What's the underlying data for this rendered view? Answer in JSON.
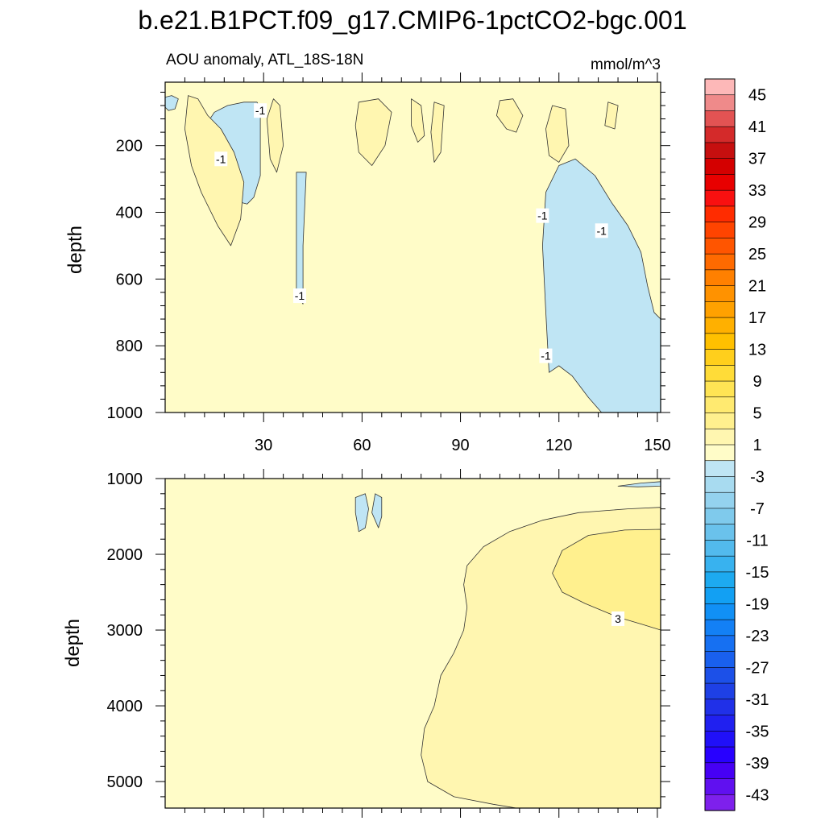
{
  "title": "b.e21.B1PCT.f09_g17.CMIP6-1pctCO2-bgc.001",
  "chart_data": [
    {
      "type": "contour",
      "panel": "upper",
      "left_string": "AOU anomaly, ATL_18S-18N",
      "right_string": "mmol/m^3",
      "ylabel": "depth",
      "xlabel": "",
      "xlim": [
        0,
        151
      ],
      "ylim": [
        1000,
        10
      ],
      "x_ticks": [
        30,
        60,
        90,
        120,
        150
      ],
      "x_tick_labels": [
        "30",
        "60",
        "90",
        "120",
        "150"
      ],
      "y_ticks": [
        200,
        400,
        600,
        800,
        1000
      ],
      "y_tick_labels": [
        "200",
        "400",
        "600",
        "800",
        "1000"
      ],
      "background_level": "-1 to 1",
      "contour_labels": [
        {
          "text": "-1",
          "x": 29,
          "y": 95
        },
        {
          "text": "-1",
          "x": 17,
          "y": 240
        },
        {
          "text": "-1",
          "x": 41,
          "y": 650
        },
        {
          "text": "-1",
          "x": 115,
          "y": 410
        },
        {
          "text": "-1",
          "x": 133,
          "y": 455
        },
        {
          "text": "-1",
          "x": 116,
          "y": 830
        }
      ],
      "regions": [
        {
          "level": "-3 to -1",
          "desc": "negative anomaly west",
          "points": [
            [
              15,
              100
            ],
            [
              19,
              80
            ],
            [
              24,
              70
            ],
            [
              28,
              70
            ],
            [
              29,
              90
            ],
            [
              29,
              290
            ],
            [
              27,
              355
            ],
            [
              25,
              375
            ],
            [
              21,
              365
            ],
            [
              17,
              320
            ],
            [
              16,
              250
            ],
            [
              14,
              180
            ],
            [
              13,
              130
            ]
          ]
        },
        {
          "level": "-3 to -1",
          "desc": "narrow negative tongue",
          "points": [
            [
              40,
              280
            ],
            [
              43,
              280
            ],
            [
              42,
              500
            ],
            [
              42,
              675
            ],
            [
              40,
              640
            ],
            [
              40,
              450
            ]
          ]
        },
        {
          "level": "-3 to -1",
          "desc": "negative anomaly east",
          "points": [
            [
              116,
              340
            ],
            [
              120,
              260
            ],
            [
              125,
              240
            ],
            [
              131,
              290
            ],
            [
              136,
              370
            ],
            [
              141,
              440
            ],
            [
              145,
              520
            ],
            [
              147,
              620
            ],
            [
              149,
              700
            ],
            [
              151,
              720
            ],
            [
              151,
              1000
            ],
            [
              133,
              1000
            ],
            [
              129,
              955
            ],
            [
              124,
              890
            ],
            [
              120,
              860
            ],
            [
              117,
              880
            ],
            [
              116,
              700
            ],
            [
              115,
              500
            ]
          ]
        },
        {
          "level": "-3 to -1",
          "desc": "small negative patch",
          "points": [
            [
              0,
              55
            ],
            [
              2,
              50
            ],
            [
              4,
              60
            ],
            [
              3,
              90
            ],
            [
              1,
              95
            ],
            [
              0,
              85
            ]
          ]
        },
        {
          "level": "1 to 3",
          "desc": "positive lobe",
          "points": [
            [
              7,
              50
            ],
            [
              10,
              60
            ],
            [
              13,
              110
            ],
            [
              17,
              150
            ],
            [
              21,
              220
            ],
            [
              24,
              310
            ],
            [
              23,
              420
            ],
            [
              20,
              500
            ],
            [
              16,
              440
            ],
            [
              11,
              340
            ],
            [
              8,
              260
            ],
            [
              6,
              150
            ]
          ]
        },
        {
          "level": "1 to 3",
          "desc": "positive lobe",
          "points": [
            [
              33,
              60
            ],
            [
              35,
              80
            ],
            [
              36,
              200
            ],
            [
              34,
              280
            ],
            [
              32,
              240
            ],
            [
              31,
              120
            ]
          ]
        },
        {
          "level": "1 to 3",
          "desc": "positive lobe",
          "points": [
            [
              59,
              70
            ],
            [
              65,
              60
            ],
            [
              69,
              100
            ],
            [
              67,
              200
            ],
            [
              63,
              260
            ],
            [
              59,
              220
            ],
            [
              58,
              140
            ]
          ]
        },
        {
          "level": "1 to 3",
          "desc": "positive lobe",
          "points": [
            [
              75,
              60
            ],
            [
              78,
              80
            ],
            [
              79,
              170
            ],
            [
              77,
              190
            ],
            [
              75,
              140
            ]
          ]
        },
        {
          "level": "1 to 3",
          "desc": "positive lobe",
          "points": [
            [
              82,
              70
            ],
            [
              85,
              80
            ],
            [
              84,
              220
            ],
            [
              82,
              250
            ],
            [
              81,
              160
            ]
          ]
        },
        {
          "level": "1 to 3",
          "desc": "positive lobe",
          "points": [
            [
              102,
              65
            ],
            [
              106,
              60
            ],
            [
              109,
              110
            ],
            [
              107,
              160
            ],
            [
              104,
              150
            ],
            [
              101,
              110
            ]
          ]
        },
        {
          "level": "1 to 3",
          "desc": "positive lobe",
          "points": [
            [
              118,
              80
            ],
            [
              122,
              90
            ],
            [
              123,
              200
            ],
            [
              120,
              250
            ],
            [
              117,
              230
            ],
            [
              116,
              150
            ]
          ]
        },
        {
          "level": "1 to 3",
          "desc": "positive lobe",
          "points": [
            [
              135,
              70
            ],
            [
              138,
              80
            ],
            [
              137,
              150
            ],
            [
              134,
              140
            ]
          ]
        }
      ]
    },
    {
      "type": "contour",
      "panel": "lower",
      "ylabel": "depth",
      "xlim": [
        0,
        151
      ],
      "ylim": [
        5350,
        1000
      ],
      "y_ticks": [
        1000,
        2000,
        3000,
        4000,
        5000
      ],
      "y_tick_labels": [
        "1000",
        "2000",
        "3000",
        "4000",
        "5000"
      ],
      "x_ticks": [
        30,
        60,
        90,
        120,
        150
      ],
      "background_level": "-1 to 1",
      "contour_labels": [
        {
          "text": "3",
          "x": 138,
          "y": 2850
        }
      ],
      "regions": [
        {
          "level": "1 to 3",
          "desc": "deep positive anomaly",
          "points": [
            [
              151,
              1380
            ],
            [
              141,
              1400
            ],
            [
              126,
              1450
            ],
            [
              115,
              1550
            ],
            [
              105,
              1700
            ],
            [
              97,
              1900
            ],
            [
              92,
              2150
            ],
            [
              91,
              2400
            ],
            [
              92,
              2700
            ],
            [
              91,
              3000
            ],
            [
              88,
              3300
            ],
            [
              84,
              3600
            ],
            [
              82,
              4000
            ],
            [
              79,
              4300
            ],
            [
              78,
              4650
            ],
            [
              80,
              5000
            ],
            [
              88,
              5200
            ],
            [
              100,
              5300
            ],
            [
              107,
              5350
            ],
            [
              151,
              5350
            ]
          ]
        },
        {
          "level": "3 to 5",
          "desc": "positive core",
          "points": [
            [
              151,
              1670
            ],
            [
              140,
              1680
            ],
            [
              129,
              1750
            ],
            [
              121,
              1950
            ],
            [
              118,
              2250
            ],
            [
              121,
              2500
            ],
            [
              128,
              2650
            ],
            [
              138,
              2830
            ],
            [
              145,
              2920
            ],
            [
              151,
              3000
            ]
          ]
        },
        {
          "level": "-3 to -1",
          "desc": "small negative patches",
          "points": [
            [
              58,
              1250
            ],
            [
              61,
              1200
            ],
            [
              62,
              1400
            ],
            [
              61,
              1650
            ],
            [
              59,
              1700
            ],
            [
              58,
              1450
            ]
          ]
        },
        {
          "level": "-3 to -1",
          "desc": "small negative patches",
          "points": [
            [
              64,
              1200
            ],
            [
              66,
              1250
            ],
            [
              66,
              1500
            ],
            [
              65,
              1650
            ],
            [
              63,
              1450
            ]
          ]
        },
        {
          "level": "-3 to -1",
          "desc": "top-right negative sliver",
          "points": [
            [
              138,
              1100
            ],
            [
              145,
              1060
            ],
            [
              151,
              1040
            ],
            [
              151,
              1100
            ],
            [
              144,
              1110
            ]
          ]
        }
      ]
    },
    {
      "type": "colorbar",
      "labels": [
        "45",
        "41",
        "37",
        "33",
        "29",
        "25",
        "21",
        "17",
        "13",
        "9",
        "5",
        "1",
        "-3",
        "-7",
        "-11",
        "-15",
        "-19",
        "-23",
        "-27",
        "-31",
        "-35",
        "-39",
        "-43"
      ],
      "colors": [
        "#FDB8B8",
        "#EF8A8A",
        "#E25353",
        "#D42A2A",
        "#C60F0F",
        "#D40000",
        "#E80000",
        "#F91010",
        "#FF2C00",
        "#FF4400",
        "#FF5500",
        "#FF6A00",
        "#FF8000",
        "#FF9200",
        "#FFA100",
        "#FFB000",
        "#FFC000",
        "#FFCF1C",
        "#FFDC38",
        "#FFE454",
        "#FFEA70",
        "#FFF08E",
        "#FFF6B0",
        "#FFFCC8",
        "#BFE5F4",
        "#A8DBF0",
        "#94D2EE",
        "#7FCAEC",
        "#6AC2EC",
        "#52BAED",
        "#38B2EF",
        "#1DAAF0",
        "#12A0F3",
        "#1190F5",
        "#1380F5",
        "#1670F2",
        "#1960EE",
        "#1C50E8",
        "#1E40E5",
        "#2030E8",
        "#2020F0",
        "#2010F8",
        "#2800FF",
        "#4600F5",
        "#6010F0",
        "#7E20EC"
      ]
    }
  ],
  "palette": {
    "bg_neutral": "#FFFCC8",
    "pos_1_3": "#FFF6B0",
    "pos_3_5": "#FFF08E",
    "neg_1_3": "#BFE5F4",
    "line": "#333333"
  }
}
